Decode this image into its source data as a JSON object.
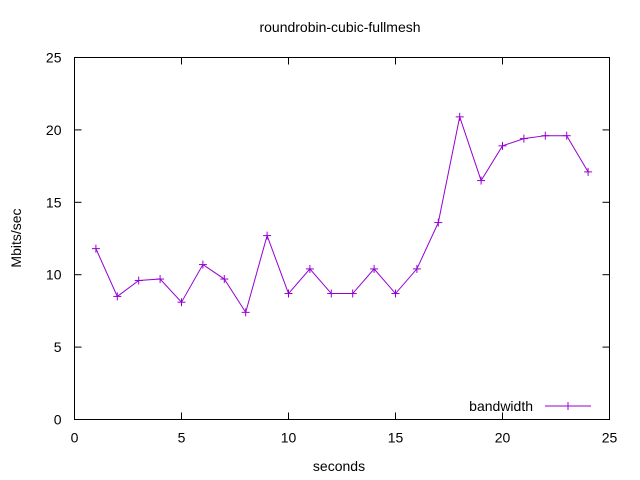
{
  "chart_data": {
    "type": "line",
    "title": "roundrobin-cubic-fullmesh",
    "xlabel": "seconds",
    "ylabel": "Mbits/sec",
    "xlim": [
      0,
      25
    ],
    "ylim": [
      0,
      25
    ],
    "xticks": [
      "0",
      "5",
      "10",
      "15",
      "20",
      "25"
    ],
    "yticks": [
      "0",
      "5",
      "10",
      "15",
      "20",
      "25"
    ],
    "grid": false,
    "legend_position": "bottom-right",
    "series": [
      {
        "name": "bandwidth",
        "color": "#9400d3",
        "marker": "plus",
        "x": [
          1,
          2,
          3,
          4,
          5,
          6,
          7,
          8,
          9,
          10,
          11,
          12,
          13,
          14,
          15,
          16,
          17,
          18,
          19,
          20,
          21,
          22,
          23,
          24
        ],
        "y": [
          11.8,
          8.5,
          9.6,
          9.7,
          8.1,
          10.7,
          9.7,
          7.4,
          12.7,
          8.7,
          10.4,
          8.7,
          8.7,
          10.4,
          8.7,
          10.4,
          13.6,
          20.9,
          16.5,
          18.9,
          19.4,
          19.6,
          19.6,
          17.1
        ]
      }
    ]
  }
}
